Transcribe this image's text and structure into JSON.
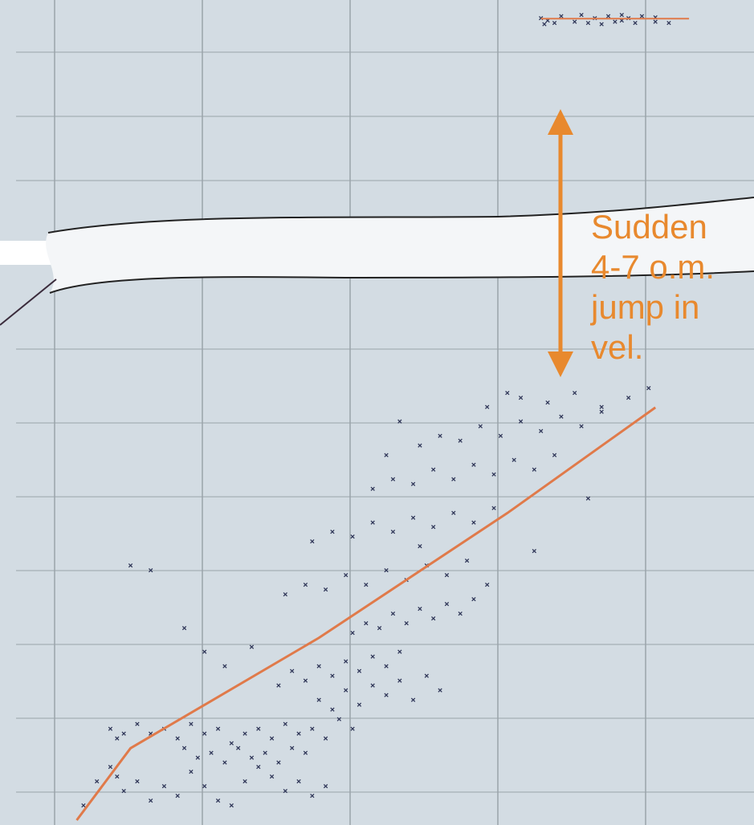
{
  "colors": {
    "panel_bg": "#D3DCE3",
    "grid": "#9AA3AA",
    "marker": "#2E3557",
    "fit_line": "#E07A4A",
    "annotation": "#E8892E",
    "break_band": "#F4F6F8",
    "break_outline": "#222222"
  },
  "chart_data": {
    "type": "scatter",
    "title": "",
    "xlabel": "",
    "ylabel": "",
    "grid": true,
    "marker": "x",
    "axis_break": "wavy band between upper and lower panels",
    "upper_panel": {
      "ylim": [
        0,
        10
      ],
      "xlim": [
        0,
        10
      ],
      "points": [
        [
          7.3,
          9.2
        ],
        [
          7.4,
          9.1
        ],
        [
          7.6,
          9.3
        ],
        [
          7.9,
          9.35
        ],
        [
          8.1,
          9.2
        ],
        [
          8.3,
          9.3
        ],
        [
          8.5,
          9.35
        ],
        [
          8.6,
          9.2
        ],
        [
          8.8,
          9.3
        ],
        [
          9.0,
          9.25
        ],
        [
          7.5,
          9.0
        ],
        [
          7.8,
          9.05
        ],
        [
          8.0,
          9.0
        ],
        [
          8.2,
          8.95
        ],
        [
          8.4,
          9.05
        ],
        [
          8.7,
          9.0
        ],
        [
          9.0,
          9.05
        ],
        [
          9.2,
          9.0
        ],
        [
          8.5,
          9.1
        ],
        [
          7.35,
          8.95
        ]
      ],
      "fit_line": [
        [
          7.3,
          9.2
        ],
        [
          9.5,
          9.2
        ]
      ]
    },
    "lower_panel": {
      "ylim": [
        0,
        10
      ],
      "xlim": [
        0,
        10
      ],
      "fit_line": [
        [
          0.4,
          0.1
        ],
        [
          1.2,
          1.6
        ],
        [
          4.0,
          3.9
        ],
        [
          6.8,
          6.5
        ],
        [
          9.0,
          8.7
        ]
      ],
      "points": [
        [
          0.5,
          0.4
        ],
        [
          0.7,
          0.9
        ],
        [
          0.9,
          1.2
        ],
        [
          1.0,
          1.0
        ],
        [
          1.1,
          0.7
        ],
        [
          1.3,
          0.9
        ],
        [
          1.5,
          0.5
        ],
        [
          1.7,
          0.8
        ],
        [
          1.9,
          0.6
        ],
        [
          2.1,
          1.1
        ],
        [
          2.3,
          0.8
        ],
        [
          2.5,
          0.5
        ],
        [
          2.7,
          0.4
        ],
        [
          2.9,
          0.9
        ],
        [
          3.1,
          1.2
        ],
        [
          3.3,
          1.0
        ],
        [
          3.5,
          0.7
        ],
        [
          3.7,
          0.9
        ],
        [
          3.9,
          0.6
        ],
        [
          4.1,
          0.8
        ],
        [
          0.9,
          2.0
        ],
        [
          1.0,
          1.8
        ],
        [
          1.1,
          1.9
        ],
        [
          1.3,
          2.1
        ],
        [
          1.5,
          1.9
        ],
        [
          1.7,
          2.0
        ],
        [
          1.9,
          1.8
        ],
        [
          2.1,
          2.1
        ],
        [
          2.3,
          1.9
        ],
        [
          2.5,
          2.0
        ],
        [
          2.7,
          1.7
        ],
        [
          2.9,
          1.9
        ],
        [
          3.1,
          2.0
        ],
        [
          3.3,
          1.8
        ],
        [
          3.5,
          2.1
        ],
        [
          3.7,
          1.9
        ],
        [
          3.9,
          2.0
        ],
        [
          4.1,
          1.8
        ],
        [
          4.3,
          2.2
        ],
        [
          4.5,
          2.0
        ],
        [
          2.0,
          1.6
        ],
        [
          2.2,
          1.4
        ],
        [
          2.4,
          1.5
        ],
        [
          2.6,
          1.3
        ],
        [
          2.8,
          1.6
        ],
        [
          3.0,
          1.4
        ],
        [
          3.2,
          1.5
        ],
        [
          3.4,
          1.3
        ],
        [
          3.6,
          1.6
        ],
        [
          3.8,
          1.5
        ],
        [
          4.0,
          2.6
        ],
        [
          4.2,
          2.4
        ],
        [
          4.4,
          2.8
        ],
        [
          4.6,
          2.5
        ],
        [
          4.8,
          2.9
        ],
        [
          5.0,
          2.7
        ],
        [
          5.2,
          3.0
        ],
        [
          5.4,
          2.6
        ],
        [
          5.6,
          3.1
        ],
        [
          5.8,
          2.8
        ],
        [
          3.4,
          2.9
        ],
        [
          3.6,
          3.2
        ],
        [
          3.8,
          3.0
        ],
        [
          4.0,
          3.3
        ],
        [
          4.2,
          3.1
        ],
        [
          4.4,
          3.4
        ],
        [
          4.6,
          3.2
        ],
        [
          4.8,
          3.5
        ],
        [
          5.0,
          3.3
        ],
        [
          5.2,
          3.6
        ],
        [
          4.5,
          4.0
        ],
        [
          4.7,
          4.2
        ],
        [
          4.9,
          4.1
        ],
        [
          5.1,
          4.4
        ],
        [
          5.3,
          4.2
        ],
        [
          5.5,
          4.5
        ],
        [
          5.7,
          4.3
        ],
        [
          5.9,
          4.6
        ],
        [
          6.1,
          4.4
        ],
        [
          6.3,
          4.7
        ],
        [
          3.5,
          4.8
        ],
        [
          3.8,
          5.0
        ],
        [
          4.1,
          4.9
        ],
        [
          4.4,
          5.2
        ],
        [
          4.7,
          5.0
        ],
        [
          5.0,
          5.3
        ],
        [
          5.3,
          5.1
        ],
        [
          5.6,
          5.4
        ],
        [
          5.9,
          5.2
        ],
        [
          6.2,
          5.5
        ],
        [
          3.9,
          5.9
        ],
        [
          4.2,
          6.1
        ],
        [
          4.5,
          6.0
        ],
        [
          4.8,
          6.3
        ],
        [
          5.1,
          6.1
        ],
        [
          5.4,
          6.4
        ],
        [
          5.7,
          6.2
        ],
        [
          6.0,
          6.5
        ],
        [
          6.3,
          6.3
        ],
        [
          6.6,
          6.6
        ],
        [
          4.8,
          7.0
        ],
        [
          5.1,
          7.2
        ],
        [
          5.4,
          7.1
        ],
        [
          5.7,
          7.4
        ],
        [
          6.0,
          7.2
        ],
        [
          6.3,
          7.5
        ],
        [
          6.6,
          7.3
        ],
        [
          6.9,
          7.6
        ],
        [
          7.2,
          7.4
        ],
        [
          7.5,
          7.7
        ],
        [
          5.5,
          7.9
        ],
        [
          5.8,
          8.1
        ],
        [
          6.1,
          8.0
        ],
        [
          6.4,
          8.3
        ],
        [
          6.7,
          8.1
        ],
        [
          7.0,
          8.4
        ],
        [
          7.3,
          8.2
        ],
        [
          7.6,
          8.5
        ],
        [
          7.9,
          8.3
        ],
        [
          8.2,
          8.6
        ],
        [
          7.0,
          8.9
        ],
        [
          7.4,
          8.8
        ],
        [
          7.8,
          9.0
        ],
        [
          8.2,
          8.7
        ],
        [
          8.6,
          8.9
        ],
        [
          8.9,
          9.1
        ],
        [
          6.5,
          8.7
        ],
        [
          6.8,
          9.0
        ],
        [
          5.2,
          8.4
        ],
        [
          5.0,
          7.7
        ],
        [
          1.2,
          5.4
        ],
        [
          1.5,
          5.3
        ],
        [
          2.0,
          4.1
        ],
        [
          2.3,
          3.6
        ],
        [
          2.6,
          3.3
        ],
        [
          3.0,
          3.7
        ],
        [
          5.5,
          5.8
        ],
        [
          6.5,
          5.0
        ],
        [
          7.2,
          5.7
        ],
        [
          8.0,
          6.8
        ]
      ]
    },
    "annotation": {
      "text": "Sudden\n4-7 o.m.\njump in\nvel.",
      "arrow": "double-headed vertical"
    }
  }
}
